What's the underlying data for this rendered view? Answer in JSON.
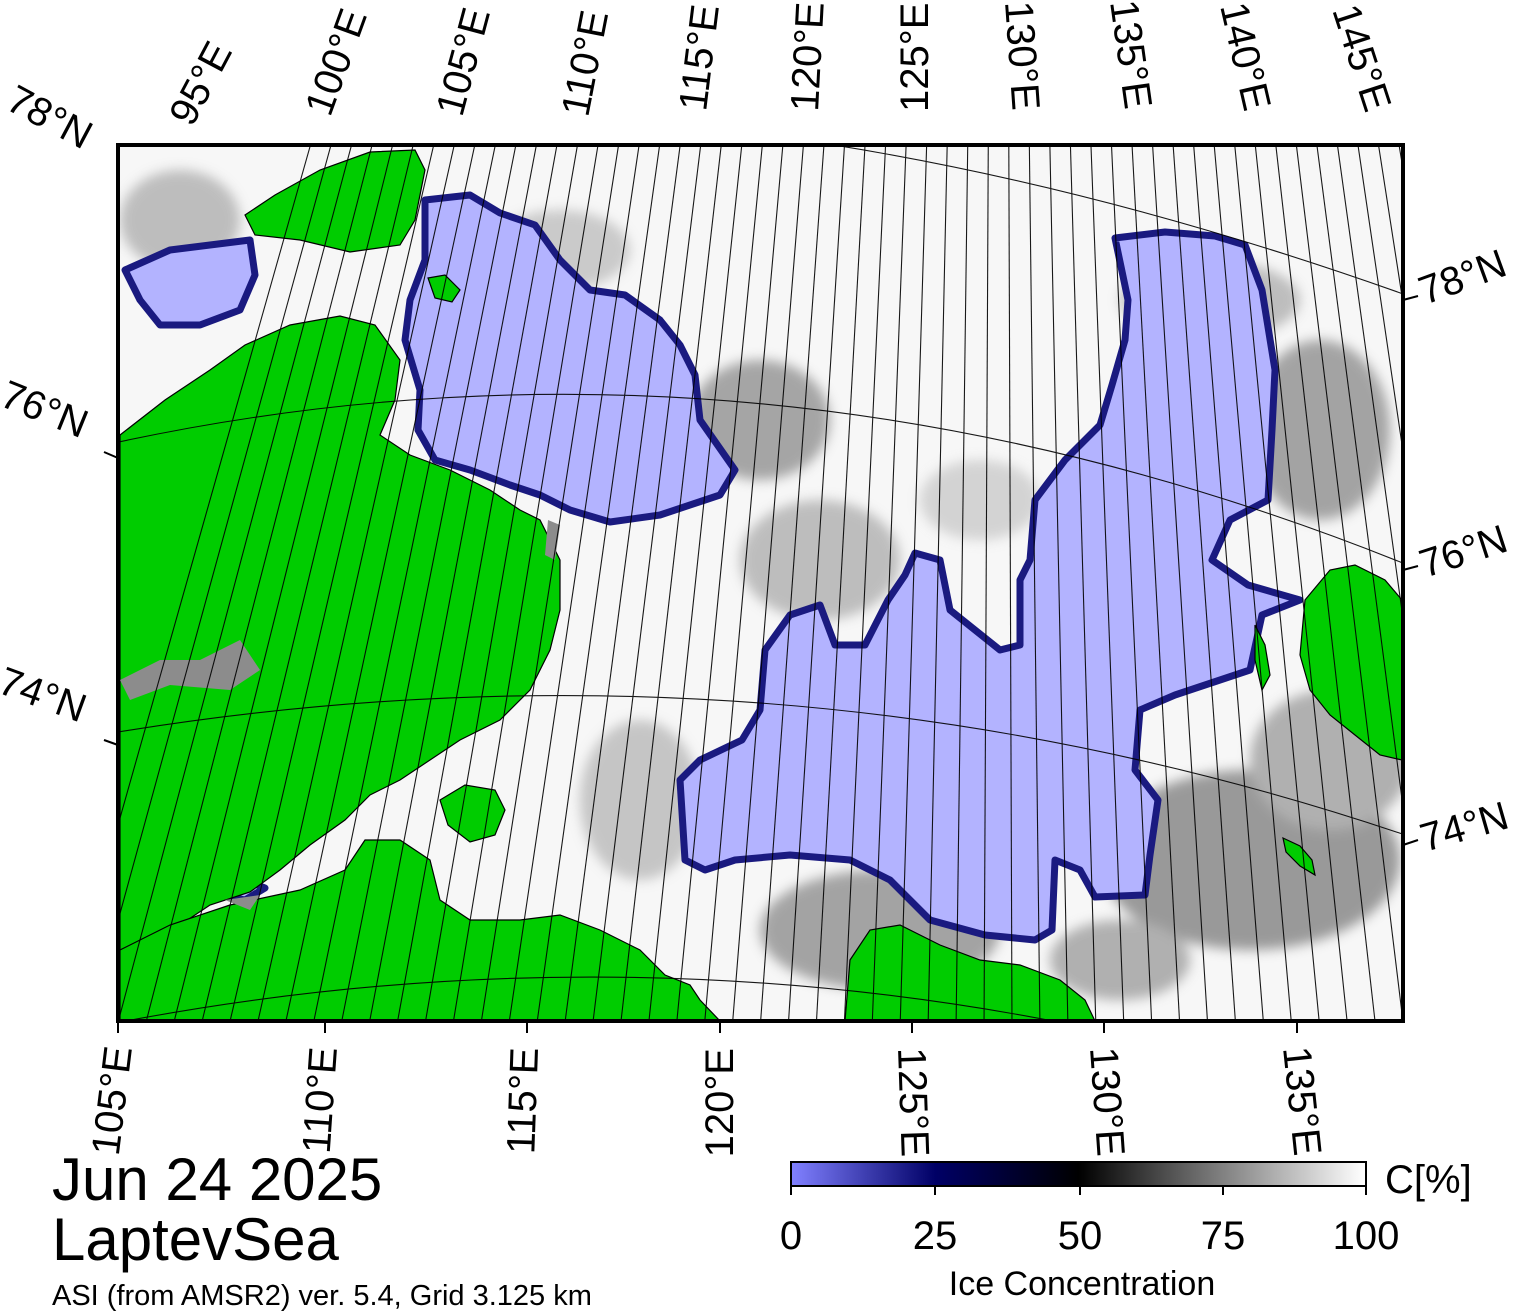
{
  "map": {
    "region": "LaptevSea",
    "date": "Jun 24 2025",
    "product": "ASI (from AMSR2) ver. 5.4,  Grid 3.125 km",
    "top_lon_labels": [
      "95°E",
      "100°E",
      "105°E",
      "110°E",
      "115°E",
      "120°E",
      "125°E",
      "130°E",
      "135°E",
      "140°E",
      "145°E"
    ],
    "bottom_lon_labels": [
      "105°E",
      "110°E",
      "115°E",
      "120°E",
      "125°E",
      "130°E",
      "135°E"
    ],
    "left_lat_labels": [
      "78°N",
      "76°N",
      "74°N"
    ],
    "right_lat_labels": [
      "78°N",
      "76°N",
      "74°N"
    ],
    "colors": {
      "land": "#00cc00",
      "land_outline": "#000000",
      "coast_mask": "#8c8c8c",
      "open_water": "#b3b3ff",
      "ice_edge": "#1a1a80",
      "high_ice": "#ffffff",
      "frame": "#000000"
    }
  },
  "colorbar": {
    "title": "Ice Concentration",
    "unit": "C[%]",
    "tick_labels": [
      "0",
      "25",
      "50",
      "75",
      "100"
    ],
    "stops": [
      "#8080ff",
      "#000066",
      "#000000",
      "#808080",
      "#ffffff"
    ]
  }
}
